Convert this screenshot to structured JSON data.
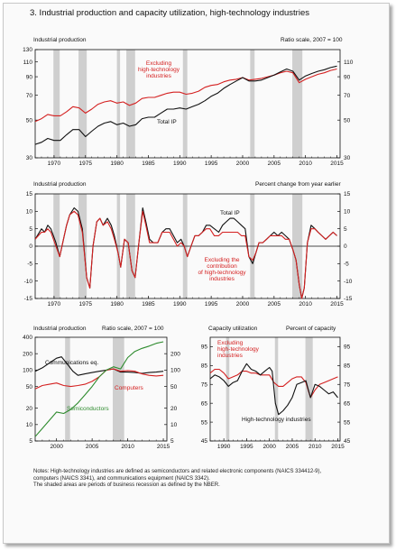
{
  "figure": {
    "title": "3.  Industrial production and capacity utilization, high-technology industries",
    "notes": [
      "Notes:  High-technology industries are defined as semiconductors and related electronic components (NAICS 334412-9),",
      "computers (NAICS 3341), and communications equipment (NAICS 3342).",
      "The shaded areas are periods of business recession as defined by the NBER."
    ]
  },
  "panels": {
    "p1": {
      "left": "Industrial production",
      "right": "Ratio scale, 2007 = 100"
    },
    "p2": {
      "left": "Industrial production",
      "right": "Percent change from year earlier"
    },
    "p3": {
      "left": "Industrial production",
      "right": "Ratio scale, 2007 = 100"
    },
    "p4": {
      "left": "Capacity utilization",
      "right": "Percent of capacity"
    }
  },
  "colors": {
    "red": "#d42020",
    "black": "#111111",
    "green": "#2e8b2e",
    "recession": "#cfcfcf"
  },
  "chart_data": [
    {
      "type": "line",
      "scale": "log",
      "xlim": [
        1967,
        2015.5
      ],
      "ylim": [
        30,
        130
      ],
      "xticks": [
        1970,
        1975,
        1980,
        1985,
        1990,
        1995,
        2000,
        2005,
        2010,
        2015
      ],
      "yticks": [
        30,
        50,
        70,
        90,
        110,
        130
      ],
      "yticks_right": [
        30,
        50,
        70,
        90,
        110
      ],
      "recessions": [
        [
          1969.9,
          1970.9
        ],
        [
          1973.9,
          1975.2
        ],
        [
          1980.0,
          1980.5
        ],
        [
          1981.5,
          1982.9
        ],
        [
          1990.5,
          1991.2
        ],
        [
          2001.2,
          2001.9
        ],
        [
          2007.9,
          2009.5
        ]
      ],
      "series": [
        {
          "name": "Excluding high-technology industries",
          "color": "red",
          "x": [
            1967,
            1968,
            1969,
            1970,
            1971,
            1972,
            1973,
            1974,
            1975,
            1976,
            1977,
            1978,
            1979,
            1980,
            1981,
            1982,
            1983,
            1984,
            1985,
            1986,
            1987,
            1988,
            1989,
            1990,
            1991,
            1992,
            1993,
            1994,
            1995,
            1996,
            1997,
            1998,
            1999,
            2000,
            2001,
            2002,
            2003,
            2004,
            2005,
            2006,
            2007,
            2008,
            2009,
            2010,
            2011,
            2012,
            2013,
            2014,
            2015
          ],
          "y": [
            49,
            51,
            54,
            53,
            53,
            56,
            60,
            59,
            55,
            58,
            62,
            64,
            65,
            63,
            64,
            61,
            63,
            67,
            68,
            68,
            70,
            72,
            73,
            73,
            71,
            72,
            74,
            78,
            80,
            81,
            84,
            86,
            87,
            89,
            86,
            87,
            88,
            90,
            92,
            95,
            97,
            95,
            83,
            87,
            90,
            93,
            95,
            98,
            100
          ]
        },
        {
          "name": "Total IP",
          "color": "black",
          "x": [
            1967,
            1968,
            1969,
            1970,
            1971,
            1972,
            1973,
            1974,
            1975,
            1976,
            1977,
            1978,
            1979,
            1980,
            1981,
            1982,
            1983,
            1984,
            1985,
            1986,
            1987,
            1988,
            1989,
            1990,
            1991,
            1992,
            1993,
            1994,
            1995,
            1996,
            1997,
            1998,
            1999,
            2000,
            2001,
            2002,
            2003,
            2004,
            2005,
            2006,
            2007,
            2008,
            2009,
            2010,
            2011,
            2012,
            2013,
            2014,
            2015
          ],
          "y": [
            36,
            37,
            39,
            38,
            38,
            41,
            44,
            44,
            40,
            43,
            46,
            48,
            49,
            47,
            48,
            46,
            47,
            51,
            52,
            52,
            55,
            58,
            58,
            59,
            58,
            60,
            62,
            65,
            69,
            72,
            77,
            81,
            85,
            89,
            85,
            85,
            86,
            89,
            92,
            96,
            100,
            97,
            86,
            91,
            94,
            97,
            99,
            102,
            104
          ]
        }
      ],
      "labels": [
        "Excluding",
        "high-technology",
        "industries",
        "Total IP"
      ]
    },
    {
      "type": "line",
      "xlim": [
        1967,
        2015.5
      ],
      "ylim": [
        -15,
        15
      ],
      "xticks": [
        1970,
        1975,
        1980,
        1985,
        1990,
        1995,
        2000,
        2005,
        2010,
        2015
      ],
      "yticks": [
        -15,
        -10,
        -5,
        0,
        5,
        10,
        15
      ],
      "recessions": [
        [
          1969.9,
          1970.9
        ],
        [
          1973.9,
          1975.2
        ],
        [
          1980.0,
          1980.5
        ],
        [
          1981.5,
          1982.9
        ],
        [
          1990.5,
          1991.2
        ],
        [
          2001.2,
          2001.9
        ],
        [
          2007.9,
          2009.5
        ]
      ],
      "series": [
        {
          "name": "Total IP",
          "color": "black",
          "x": [
            1967,
            1968,
            1968.5,
            1969,
            1969.5,
            1970.3,
            1970.9,
            1971.5,
            1972,
            1972.5,
            1973.2,
            1973.8,
            1974.5,
            1975.2,
            1975.7,
            1976.2,
            1976.8,
            1977.3,
            1977.8,
            1978.5,
            1979.1,
            1979.6,
            1980.2,
            1980.6,
            1981.2,
            1981.8,
            1982.4,
            1982.9,
            1983.5,
            1984.1,
            1984.6,
            1985.2,
            1985.8,
            1986.5,
            1987.2,
            1987.8,
            1988.4,
            1989,
            1989.6,
            1990.2,
            1990.7,
            1991.2,
            1991.8,
            1992.4,
            1993,
            1993.6,
            1994.2,
            1994.8,
            1995.5,
            1996.2,
            1996.8,
            1997.4,
            1998,
            1998.6,
            1999.2,
            1999.8,
            2000.4,
            2001,
            2001.6,
            2002.1,
            2002.6,
            2003.2,
            2003.8,
            2004.4,
            2005,
            2005.6,
            2006.2,
            2006.8,
            2007.4,
            2008,
            2008.5,
            2009,
            2009.4,
            2009.8,
            2010.3,
            2010.9,
            2011.5,
            2012,
            2012.6,
            2013.2,
            2013.8,
            2014.4,
            2015
          ],
          "y": [
            2,
            5,
            4,
            6,
            5,
            1,
            -3,
            2,
            6,
            9,
            11,
            10,
            5,
            -9,
            -12,
            0,
            7,
            8,
            6,
            8,
            6,
            3,
            -2,
            -6,
            2,
            1,
            -7,
            -9,
            1,
            11,
            7,
            2,
            1,
            1,
            4,
            5,
            5,
            3,
            1,
            2,
            0,
            -3,
            0,
            3,
            3,
            4,
            6,
            6,
            5,
            4,
            6,
            7,
            8,
            8,
            7,
            6,
            5,
            -3,
            -5,
            -2,
            1,
            1,
            2,
            3,
            4,
            3,
            4,
            3,
            2,
            -1,
            -4,
            -11,
            -15,
            -12,
            1,
            6,
            5,
            4,
            3,
            2,
            3,
            4,
            3
          ]
        },
        {
          "name": "Excluding the contribution of high-technology industries",
          "color": "red",
          "x": [
            1967,
            1968,
            1968.5,
            1969,
            1969.5,
            1970.3,
            1970.9,
            1971.5,
            1972,
            1972.5,
            1973.2,
            1973.8,
            1974.5,
            1975.2,
            1975.7,
            1976.2,
            1976.8,
            1977.3,
            1977.8,
            1978.5,
            1979.1,
            1979.6,
            1980.2,
            1980.6,
            1981.2,
            1981.8,
            1982.4,
            1982.9,
            1983.5,
            1984.1,
            1984.6,
            1985.2,
            1985.8,
            1986.5,
            1987.2,
            1987.8,
            1988.4,
            1989,
            1989.6,
            1990.2,
            1990.7,
            1991.2,
            1991.8,
            1992.4,
            1993,
            1993.6,
            1994.2,
            1994.8,
            1995.5,
            1996.2,
            1996.8,
            1997.4,
            1998,
            1998.6,
            1999.2,
            1999.8,
            2000.4,
            2001,
            2001.6,
            2002.1,
            2002.6,
            2003.2,
            2003.8,
            2004.4,
            2005,
            2005.6,
            2006.2,
            2006.8,
            2007.4,
            2008,
            2008.5,
            2009,
            2009.4,
            2009.8,
            2010.3,
            2010.9,
            2011.5,
            2012,
            2012.6,
            2013.2,
            2013.8,
            2014.4,
            2015
          ],
          "y": [
            2,
            4,
            4,
            5,
            4,
            0,
            -3,
            2,
            6,
            9,
            10,
            9,
            4,
            -9,
            -12,
            0,
            7,
            8,
            6,
            7,
            5,
            2,
            -2,
            -6,
            2,
            1,
            -7,
            -9,
            1,
            10,
            6,
            1,
            1,
            1,
            4,
            4,
            4,
            2,
            0,
            1,
            0,
            -3,
            0,
            3,
            3,
            4,
            5,
            5,
            3,
            3,
            4,
            4,
            4,
            4,
            4,
            3,
            3,
            -3,
            -4,
            -2,
            1,
            1,
            2,
            3,
            3,
            3,
            3,
            2,
            2,
            -1,
            -4,
            -11,
            -15,
            -12,
            1,
            5,
            5,
            4,
            3,
            2,
            3,
            4,
            3
          ]
        }
      ],
      "labels": [
        "Total IP",
        "Excluding the",
        "contribution",
        "of high-technology",
        "industries"
      ]
    },
    {
      "type": "line",
      "scale": "log",
      "xlim": [
        1997,
        2015.5
      ],
      "ylim": [
        5,
        400
      ],
      "xticks": [
        2000,
        2005,
        2010,
        2015
      ],
      "yticks": [
        5,
        10,
        20,
        50,
        100,
        200,
        400
      ],
      "yticks_right": [
        5,
        10,
        20,
        50,
        100,
        200
      ],
      "recessions": [
        [
          2001.2,
          2001.9
        ],
        [
          2007.9,
          2009.5
        ]
      ],
      "series": [
        {
          "name": "Communications eq.",
          "color": "black",
          "x": [
            1997,
            1998,
            1999,
            2000,
            2000.7,
            2001.5,
            2002.3,
            2003,
            2004,
            2005,
            2006,
            2007,
            2008,
            2009,
            2010,
            2011,
            2012,
            2013,
            2014,
            2015
          ],
          "y": [
            95,
            110,
            135,
            165,
            175,
            130,
            95,
            80,
            85,
            90,
            95,
            100,
            105,
            92,
            92,
            90,
            87,
            90,
            92,
            95
          ]
        },
        {
          "name": "Computers",
          "color": "red",
          "x": [
            1997,
            1998,
            1999,
            2000,
            2001,
            2002,
            2003,
            2004,
            2005,
            2006,
            2007,
            2008,
            2009,
            2010,
            2011,
            2012,
            2013,
            2014,
            2015
          ],
          "y": [
            45,
            52,
            55,
            58,
            52,
            50,
            52,
            55,
            62,
            75,
            100,
            105,
            95,
            98,
            95,
            85,
            80,
            78,
            80
          ]
        },
        {
          "name": "Semiconductors",
          "color": "green",
          "x": [
            1997,
            1998,
            1999,
            2000,
            2001,
            2002,
            2003,
            2004,
            2005,
            2006,
            2007,
            2008,
            2009,
            2010,
            2011,
            2012,
            2013,
            2014,
            2015
          ],
          "y": [
            6,
            8.5,
            12,
            17,
            16,
            19,
            25,
            35,
            50,
            75,
            100,
            115,
            105,
            170,
            220,
            250,
            275,
            310,
            330
          ]
        }
      ],
      "labels": [
        "Communications eq.",
        "Computers",
        "Semiconductors"
      ]
    },
    {
      "type": "line",
      "xlim": [
        1987,
        2015.5
      ],
      "ylim": [
        45,
        100
      ],
      "xticks": [
        1990,
        1995,
        2000,
        2005,
        2010,
        2015
      ],
      "yticks": [
        45,
        55,
        65,
        75,
        85,
        95
      ],
      "yticks_right": [
        45,
        55,
        65,
        75,
        85,
        95
      ],
      "recessions": [
        [
          1990.5,
          1991.2
        ],
        [
          2001.2,
          2001.9
        ],
        [
          2007.9,
          2009.5
        ]
      ],
      "series": [
        {
          "name": "Excluding high-technology industries",
          "color": "red",
          "x": [
            1987,
            1988,
            1989,
            1990,
            1991,
            1992,
            1993,
            1994,
            1995,
            1996,
            1997,
            1998,
            1999,
            2000,
            2001,
            2002,
            2003,
            2004,
            2005,
            2006,
            2007,
            2008,
            2009,
            2010,
            2011,
            2012,
            2013,
            2014,
            2015
          ],
          "y": [
            81,
            83,
            83,
            81,
            78,
            79,
            80,
            82,
            82,
            81,
            81,
            80,
            80,
            80,
            76,
            74,
            74,
            76,
            78,
            79,
            79,
            76,
            68,
            72,
            75,
            76,
            77,
            78,
            79
          ]
        },
        {
          "name": "High-technology industries",
          "color": "black",
          "x": [
            1987,
            1988,
            1989,
            1990,
            1991,
            1992,
            1993,
            1994,
            1995,
            1996,
            1997,
            1998,
            1999,
            2000,
            2000.6,
            2001.3,
            2002,
            2003,
            2004,
            2005,
            2006,
            2007,
            2008,
            2009,
            2010,
            2011,
            2012,
            2013,
            2014,
            2015
          ],
          "y": [
            78,
            80,
            79,
            77,
            74,
            76,
            77,
            82,
            86,
            83,
            82,
            80,
            82,
            84,
            82,
            65,
            59,
            61,
            64,
            68,
            75,
            76,
            77,
            68,
            75,
            74,
            72,
            70,
            71,
            68
          ]
        }
      ],
      "labels": [
        "Excluding",
        "high-technology",
        "industries",
        "High-technology industries"
      ]
    }
  ]
}
